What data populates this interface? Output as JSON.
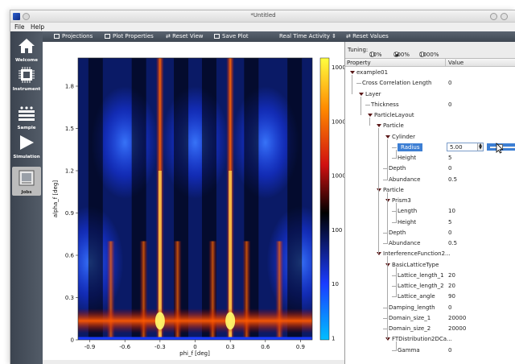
{
  "window": {
    "title": "*Untitled"
  },
  "menu": {
    "file": "File",
    "help": "Help"
  },
  "sidebar": {
    "items": [
      {
        "label": "Welcome",
        "icon": "home-icon"
      },
      {
        "label": "Instrument",
        "icon": "chip-icon"
      },
      {
        "label": "Sample",
        "icon": "layers-icon"
      },
      {
        "label": "Simulation",
        "icon": "play-icon"
      },
      {
        "label": "Jobs",
        "icon": "jobs-icon",
        "active": true
      }
    ]
  },
  "toolbar": {
    "projections": "Projections",
    "plot_properties": "Plot Properties",
    "reset_view": "Reset View",
    "save_plot": "Save Plot",
    "activity_select": "Real Time Activity",
    "reset_values": "Reset Values"
  },
  "tuning": {
    "label": "Tuning:",
    "options": [
      "10%",
      "100%",
      "1000%"
    ],
    "selected": "100%"
  },
  "tree": {
    "columns": [
      "Property",
      "Value"
    ],
    "rows": [
      {
        "name": "example01",
        "value": "",
        "depth": 0,
        "expand": true
      },
      {
        "name": "Cross Correlation Length",
        "value": "0",
        "depth": 1,
        "expand": false
      },
      {
        "name": "Layer",
        "value": "",
        "depth": 1,
        "expand": true
      },
      {
        "name": "Thickness",
        "value": "0",
        "depth": 2,
        "expand": false
      },
      {
        "name": "ParticleLayout",
        "value": "",
        "depth": 2,
        "expand": true
      },
      {
        "name": "Particle",
        "value": "",
        "depth": 3,
        "expand": true
      },
      {
        "name": "Cylinder",
        "value": "",
        "depth": 4,
        "expand": true
      },
      {
        "name": "Radius",
        "value": "5.00",
        "depth": 5,
        "expand": false,
        "selected": true
      },
      {
        "name": "Height",
        "value": "5",
        "depth": 5,
        "expand": false
      },
      {
        "name": "Depth",
        "value": "0",
        "depth": 4,
        "expand": false
      },
      {
        "name": "Abundance",
        "value": "0.5",
        "depth": 4,
        "expand": false
      },
      {
        "name": "Particle",
        "value": "",
        "depth": 3,
        "expand": true
      },
      {
        "name": "Prism3",
        "value": "",
        "depth": 4,
        "expand": true
      },
      {
        "name": "Length",
        "value": "10",
        "depth": 5,
        "expand": false
      },
      {
        "name": "Height",
        "value": "5",
        "depth": 5,
        "expand": false
      },
      {
        "name": "Depth",
        "value": "0",
        "depth": 4,
        "expand": false
      },
      {
        "name": "Abundance",
        "value": "0.5",
        "depth": 4,
        "expand": false
      },
      {
        "name": "InterferenceFunction2...",
        "value": "",
        "depth": 3,
        "expand": true
      },
      {
        "name": "BasicLatticeType",
        "value": "",
        "depth": 4,
        "expand": true
      },
      {
        "name": "Lattice_length_1",
        "value": "20",
        "depth": 5,
        "expand": false
      },
      {
        "name": "Lattice_length_2",
        "value": "20",
        "depth": 5,
        "expand": false
      },
      {
        "name": "Lattice_angle",
        "value": "90",
        "depth": 5,
        "expand": false
      },
      {
        "name": "Damping_length",
        "value": "0",
        "depth": 4,
        "expand": false
      },
      {
        "name": "Domain_size_1",
        "value": "20000",
        "depth": 4,
        "expand": false
      },
      {
        "name": "Domain_size_2",
        "value": "20000",
        "depth": 4,
        "expand": false
      },
      {
        "name": "FTDistribution2DCa...",
        "value": "",
        "depth": 4,
        "expand": true
      },
      {
        "name": "Gamma",
        "value": "0",
        "depth": 5,
        "expand": false
      }
    ]
  },
  "chart_data": {
    "type": "heatmap",
    "xlabel": "phi_f [deg]",
    "ylabel": "alpha_f [deg]",
    "xlim": [
      -1.0,
      1.0
    ],
    "ylim": [
      0,
      2.0
    ],
    "x_ticks": [
      "-0.9",
      "-0.6",
      "-0.3",
      "0",
      "0.3",
      "0.6",
      "0.9"
    ],
    "y_ticks": [
      "0",
      "0.3",
      "0.6",
      "0.9",
      "1.2",
      "1.5",
      "1.8"
    ],
    "colorbar": {
      "scale": "log",
      "ticks": [
        "1",
        "10",
        "100",
        "1000",
        "10000",
        "100000"
      ],
      "colors": [
        "#00bfff",
        "#1a3cff",
        "#000000",
        "#d01010",
        "#ff8a00",
        "#ffff40"
      ]
    },
    "bright_streaks_phi_deg": [
      -0.3,
      0.3
    ],
    "secondary_streaks_phi_deg": [
      -0.72,
      -0.44,
      -0.15,
      0.15,
      0.44,
      0.72
    ],
    "horizontal_band_alpha_deg": [
      0.07,
      0.2
    ],
    "blue_lobes": [
      {
        "phi_deg": -0.6,
        "alpha_deg": 1.4
      },
      {
        "phi_deg": 0.0,
        "alpha_deg": 1.4
      },
      {
        "phi_deg": 0.6,
        "alpha_deg": 1.4
      },
      {
        "phi_deg": -0.9,
        "alpha_deg": 0.55
      },
      {
        "phi_deg": 0.9,
        "alpha_deg": 0.55
      }
    ]
  }
}
